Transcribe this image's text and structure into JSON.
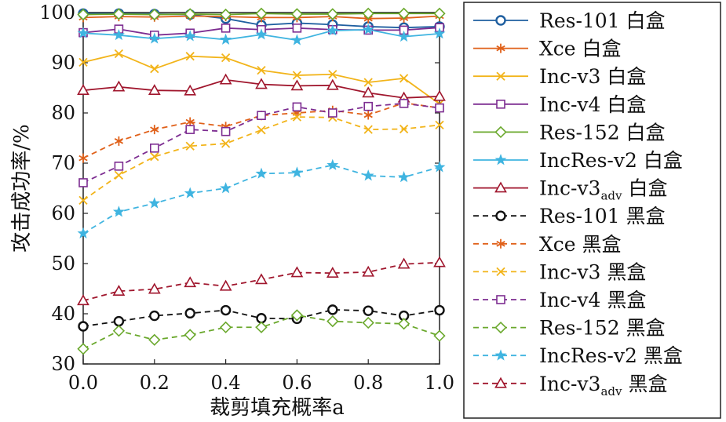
{
  "chart_data": {
    "type": "line",
    "xlabel": "裁剪填充概率a",
    "ylabel": "攻击成功率/%",
    "xlim": [
      0.0,
      1.0
    ],
    "ylim": [
      30,
      100
    ],
    "x": [
      0.0,
      0.1,
      0.2,
      0.3,
      0.4,
      0.5,
      0.6,
      0.7,
      0.8,
      0.9,
      1.0
    ],
    "x_tick_labels": [
      "0.0",
      "0.2",
      "0.4",
      "0.6",
      "0.8",
      "1.0"
    ],
    "y_tick_labels": [
      "30",
      "40",
      "50",
      "60",
      "70",
      "80",
      "90",
      "100"
    ],
    "legend_position": "right",
    "series": [
      {
        "name": "Res-101 白盒",
        "color": "#1f5fa0",
        "marker": "circle",
        "dash": "solid",
        "values": [
          99.8,
          99.8,
          99.7,
          99.6,
          98.8,
          97.5,
          97.9,
          97.6,
          97.2,
          97.0,
          97.2
        ]
      },
      {
        "name": "Xce 白盒",
        "color": "#e0611a",
        "marker": "star6",
        "dash": "solid",
        "values": [
          99.0,
          99.2,
          99.1,
          99.3,
          99.2,
          99.0,
          99.0,
          99.2,
          98.8,
          98.9,
          99.3
        ]
      },
      {
        "name": "Inc-v3 白盒",
        "color": "#f2b41a",
        "marker": "x",
        "dash": "solid",
        "values": [
          90.1,
          91.8,
          88.8,
          91.3,
          91.0,
          88.5,
          87.5,
          87.7,
          86.1,
          86.9,
          81.8
        ]
      },
      {
        "name": "Inc-v4 白盒",
        "color": "#7d2d91",
        "marker": "square",
        "dash": "solid",
        "values": [
          96.0,
          96.7,
          95.5,
          95.9,
          96.9,
          96.6,
          96.9,
          96.6,
          96.5,
          96.5,
          97.0
        ]
      },
      {
        "name": "Res-152 白盒",
        "color": "#6aa82c",
        "marker": "diamond",
        "dash": "solid",
        "values": [
          99.6,
          99.7,
          99.6,
          99.7,
          99.6,
          99.8,
          99.7,
          99.7,
          99.8,
          99.8,
          99.8
        ]
      },
      {
        "name": "IncRes-v2 白盒",
        "color": "#3fb4e0",
        "marker": "star5",
        "dash": "solid",
        "values": [
          95.9,
          95.5,
          94.8,
          95.3,
          94.6,
          95.6,
          94.5,
          96.4,
          96.6,
          95.2,
          95.8
        ]
      },
      {
        "name": "Inc-v3",
        "name_sub": "adv",
        "name_suffix": " 白盒",
        "color": "#a0162d",
        "marker": "triangle",
        "dash": "solid",
        "values": [
          84.5,
          85.2,
          84.5,
          84.4,
          86.6,
          85.7,
          85.4,
          85.5,
          84.0,
          83.0,
          83.3
        ]
      },
      {
        "name": "Res-101 黑盒",
        "color": "#111111",
        "marker": "circle",
        "dash": "dashed",
        "values": [
          37.5,
          38.5,
          39.6,
          40.1,
          40.7,
          39.1,
          39.0,
          40.8,
          40.6,
          39.6,
          40.7
        ]
      },
      {
        "name": "Xce 黑盒",
        "color": "#e0611a",
        "marker": "star6",
        "dash": "dashed",
        "values": [
          71.0,
          74.4,
          76.7,
          78.2,
          77.3,
          79.5,
          80.0,
          80.5,
          79.6,
          82.0,
          81.0
        ]
      },
      {
        "name": "Inc-v3 黑盒",
        "color": "#f2b41a",
        "marker": "x",
        "dash": "dashed",
        "values": [
          62.6,
          67.6,
          71.3,
          73.4,
          73.9,
          76.6,
          79.2,
          79.1,
          76.7,
          76.8,
          77.6
        ]
      },
      {
        "name": "Inc-v4 黑盒",
        "color": "#7d2d91",
        "marker": "square",
        "dash": "dashed",
        "values": [
          66.1,
          69.4,
          73.0,
          76.7,
          76.3,
          79.5,
          81.2,
          80.0,
          81.3,
          81.9,
          81.0
        ]
      },
      {
        "name": "Res-152 黑盒",
        "color": "#6aa82c",
        "marker": "diamond",
        "dash": "dashed",
        "values": [
          33.0,
          36.6,
          34.8,
          35.8,
          37.3,
          37.3,
          39.7,
          38.5,
          38.2,
          38.0,
          35.6
        ]
      },
      {
        "name": "IncRes-v2 黑盒",
        "color": "#3fb4e0",
        "marker": "star5",
        "dash": "dashed",
        "values": [
          56.0,
          60.3,
          62.0,
          64.0,
          65.0,
          67.9,
          68.1,
          69.6,
          67.5,
          67.2,
          69.2
        ]
      },
      {
        "name": "Inc-v3",
        "name_sub": "adv",
        "name_suffix": " 黑盒",
        "color": "#a0162d",
        "marker": "triangle",
        "dash": "dashed",
        "values": [
          42.6,
          44.5,
          44.9,
          46.2,
          45.5,
          46.8,
          48.2,
          48.1,
          48.3,
          49.9,
          50.2
        ]
      }
    ]
  }
}
